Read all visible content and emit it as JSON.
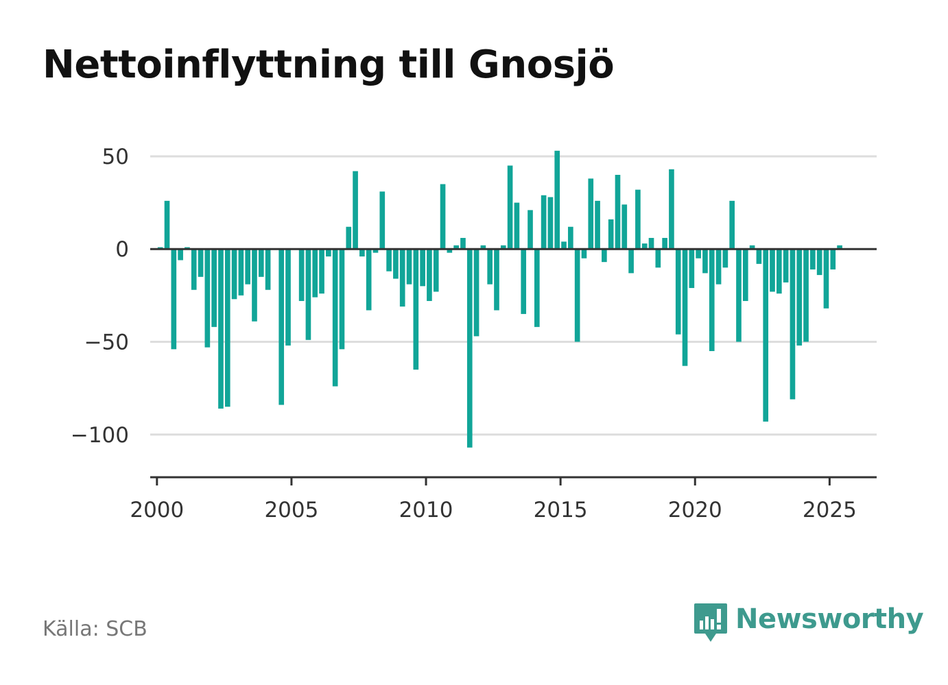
{
  "header": {
    "title": "Nettoinflyttning till Gnosjö"
  },
  "footer": {
    "source": "Källa: SCB",
    "brand": "Newsworthy"
  },
  "colors": {
    "bar": "#11a598",
    "grid": "#dddddd",
    "axis": "#333333",
    "brand": "#3e9a8e",
    "text": "#333333"
  },
  "chart_data": {
    "type": "bar",
    "title": "Nettoinflyttning till Gnosjö",
    "xlabel": "",
    "ylabel": "",
    "ylim": [
      -123,
      57
    ],
    "xlim": [
      1999.75,
      2026.75
    ],
    "yticks": [
      50,
      0,
      -50,
      -100
    ],
    "ytick_labels": [
      "50",
      "0",
      "−50",
      "−100"
    ],
    "xticks": [
      2000,
      2005,
      2010,
      2015,
      2020,
      2025
    ],
    "xtick_labels": [
      "2000",
      "2005",
      "2010",
      "2015",
      "2020",
      "2025"
    ],
    "grid": true,
    "legend": "none",
    "series": [
      {
        "x": [
          2000.125,
          2000.375,
          2000.625,
          2000.875,
          2001.125,
          2001.375,
          2001.625,
          2001.875,
          2002.125,
          2002.375,
          2002.625,
          2002.875,
          2003.125,
          2003.375,
          2003.625,
          2003.875,
          2004.125,
          2004.375,
          2004.625,
          2004.875,
          2005.125,
          2005.375,
          2005.625,
          2005.875,
          2006.125,
          2006.375,
          2006.625,
          2006.875,
          2007.125,
          2007.375,
          2007.625,
          2007.875,
          2008.125,
          2008.375,
          2008.625,
          2008.875,
          2009.125,
          2009.375,
          2009.625,
          2009.875,
          2010.125,
          2010.375,
          2010.625,
          2010.875,
          2011.125,
          2011.375,
          2011.625,
          2011.875,
          2012.125,
          2012.375,
          2012.625,
          2012.875,
          2013.125,
          2013.375,
          2013.625,
          2013.875,
          2014.125,
          2014.375,
          2014.625,
          2014.875,
          2015.125,
          2015.375,
          2015.625,
          2015.875,
          2016.125,
          2016.375,
          2016.625,
          2016.875,
          2017.125,
          2017.375,
          2017.625,
          2017.875,
          2018.125,
          2018.375,
          2018.625,
          2018.875,
          2019.125,
          2019.375,
          2019.625,
          2019.875,
          2020.125,
          2020.375,
          2020.625,
          2020.875,
          2021.125,
          2021.375,
          2021.625,
          2021.875,
          2022.125,
          2022.375,
          2022.625,
          2022.875,
          2023.125,
          2023.375,
          2023.625,
          2023.875,
          2024.125,
          2024.375,
          2024.625,
          2024.875,
          2025.125,
          2025.375
        ],
        "values": [
          1,
          26,
          -54,
          -6,
          1,
          -22,
          -15,
          -53,
          -42,
          -86,
          -85,
          -27,
          -25,
          -19,
          -39,
          -15,
          -22,
          0,
          -84,
          -52,
          0,
          -28,
          -49,
          -26,
          -24,
          -4,
          -74,
          -54,
          12,
          42,
          -4,
          -33,
          -2,
          31,
          -12,
          -16,
          -31,
          -19,
          -65,
          -20,
          -28,
          -23,
          35,
          -2,
          2,
          6,
          -107,
          -47,
          2,
          -19,
          -33,
          2,
          45,
          25,
          -35,
          21,
          -42,
          29,
          28,
          53,
          4,
          12,
          -50,
          -5,
          38,
          26,
          -7,
          16,
          40,
          24,
          -13,
          32,
          3,
          6,
          -10,
          6,
          43,
          -46,
          -63,
          -21,
          -5,
          -13,
          -55,
          -19,
          -10,
          26,
          -50,
          -28,
          2,
          -8,
          -93,
          -23,
          -24,
          -18,
          -81,
          -52,
          -50,
          -11,
          -14,
          -32,
          -11,
          2
        ]
      }
    ]
  }
}
